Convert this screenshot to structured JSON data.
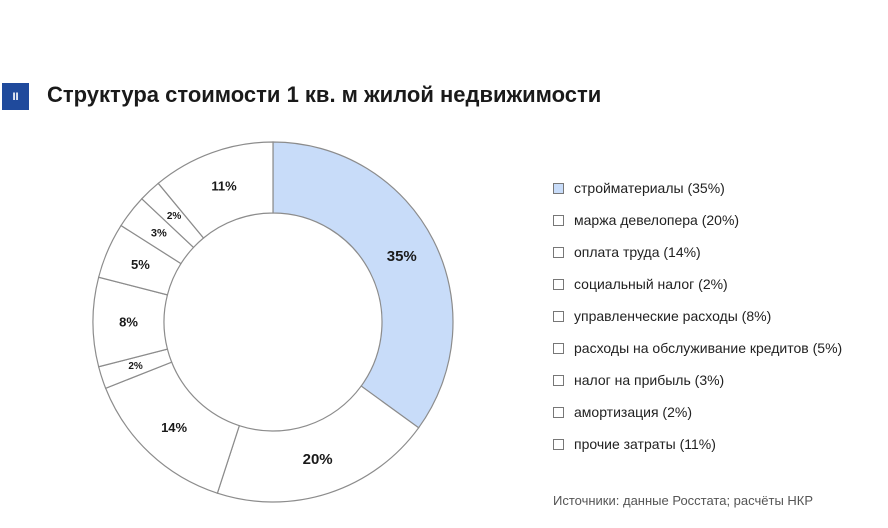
{
  "header": {
    "badge": "II",
    "title": "Структура стоимости 1 кв. м жилой недвижимости"
  },
  "colors": {
    "highlight": "#c8dcf9",
    "default_fill": "#ffffff",
    "stroke": "#8c8c8c",
    "badge": "#1f4a9c"
  },
  "chart_data": {
    "type": "pie",
    "donut": true,
    "title": "Структура стоимости 1 кв. м жилой недвижимости",
    "legend_position": "right",
    "slices": [
      {
        "label": "стройматериалы",
        "value": 35,
        "value_label": "35%",
        "legend": "стройматериалы (35%)",
        "highlight": true
      },
      {
        "label": "маржа девелопера",
        "value": 20,
        "value_label": "20%",
        "legend": "маржа девелопера (20%)"
      },
      {
        "label": "оплата труда",
        "value": 14,
        "value_label": "14%",
        "legend": "оплата труда (14%)"
      },
      {
        "label": "социальный налог",
        "value": 2,
        "value_label": "2%",
        "legend": "социальный налог (2%)"
      },
      {
        "label": "управленческие расходы",
        "value": 8,
        "value_label": "8%",
        "legend": "управленческие расходы (8%)"
      },
      {
        "label": "расходы на обслуживание кредитов",
        "value": 5,
        "value_label": "5%",
        "legend": "расходы на обслуживание кредитов (5%)"
      },
      {
        "label": "налог на прибыль",
        "value": 3,
        "value_label": "3%",
        "legend": "налог на прибыль (3%)"
      },
      {
        "label": "амортизация",
        "value": 2,
        "value_label": "2%",
        "legend": "амортизация (2%)"
      },
      {
        "label": "прочие затраты",
        "value": 11,
        "value_label": "11%",
        "legend": "прочие затраты (11%)"
      }
    ]
  },
  "source": "Источники: данные Росстата; расчёты НКР"
}
